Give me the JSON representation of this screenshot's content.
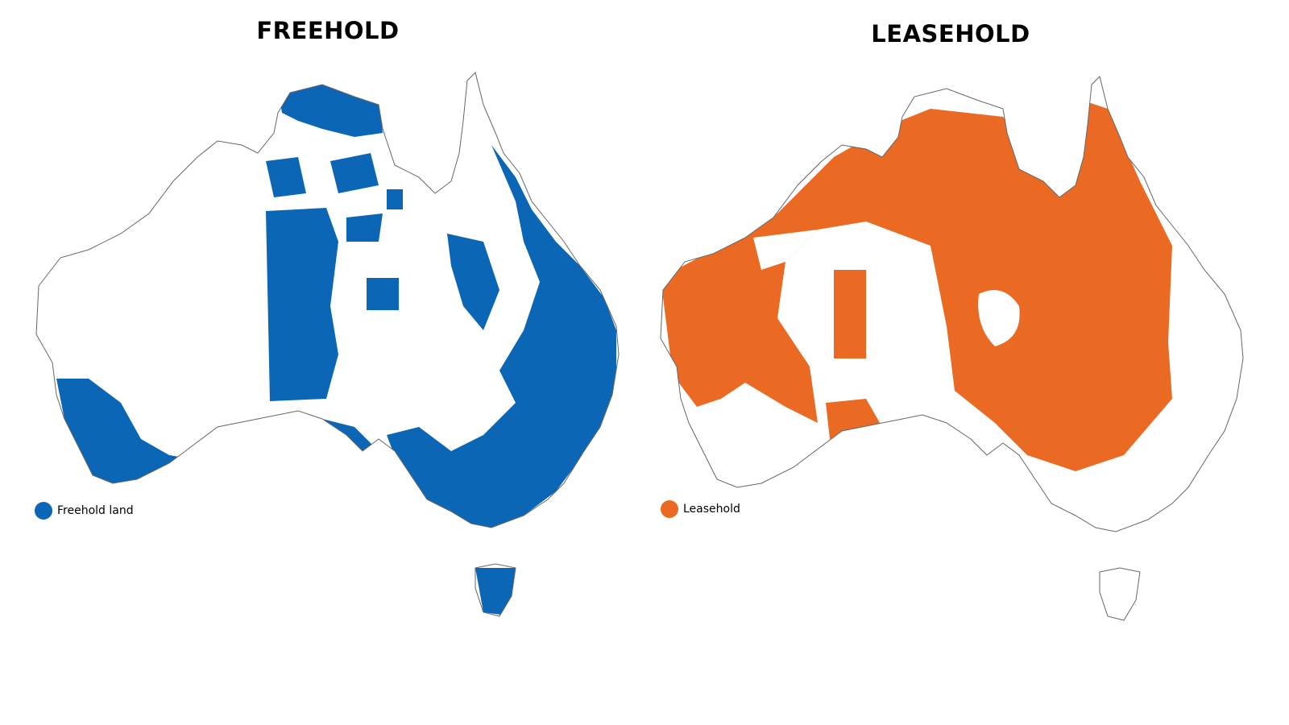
{
  "maps": [
    {
      "title": "FREEHOLD",
      "legend": {
        "label": "Freehold land",
        "color": "#0b66b5"
      }
    },
    {
      "title": "LEASEHOLD",
      "legend": {
        "label": "Leasehold",
        "color": "#ea6a24"
      }
    }
  ]
}
